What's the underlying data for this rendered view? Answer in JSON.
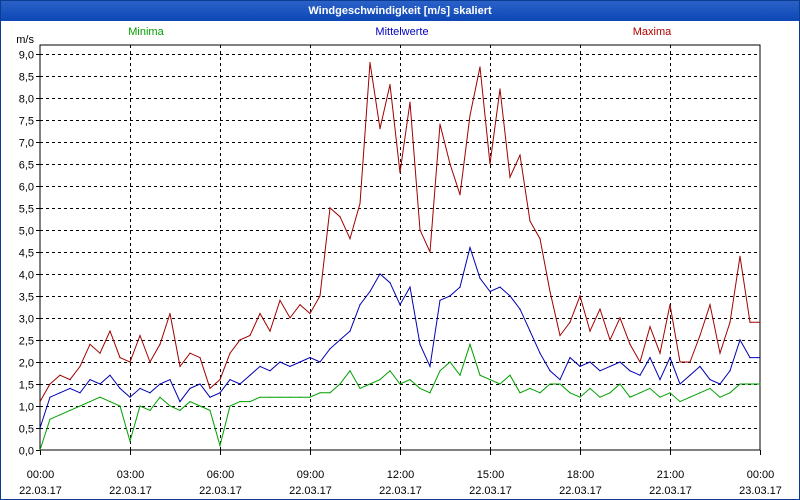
{
  "window": {
    "title": "Windgeschwindigkeit [m/s] skaliert"
  },
  "chart_data": {
    "type": "line",
    "title": "Windgeschwindigkeit [m/s] skaliert",
    "ylabel": "m/s",
    "xlabel": "",
    "ylim": [
      0,
      9.2
    ],
    "xlim": [
      0,
      24
    ],
    "grid": true,
    "y_ticks": [
      {
        "value": 0,
        "label": "0,0"
      },
      {
        "value": 0.5,
        "label": "0,5"
      },
      {
        "value": 1,
        "label": "1,0"
      },
      {
        "value": 1.5,
        "label": "1,5"
      },
      {
        "value": 2,
        "label": "2,0"
      },
      {
        "value": 2.5,
        "label": "2,5"
      },
      {
        "value": 3,
        "label": "3,0"
      },
      {
        "value": 3.5,
        "label": "3,5"
      },
      {
        "value": 4,
        "label": "4,0"
      },
      {
        "value": 4.5,
        "label": "4,5"
      },
      {
        "value": 5,
        "label": "5,0"
      },
      {
        "value": 5.5,
        "label": "5,5"
      },
      {
        "value": 6,
        "label": "6,0"
      },
      {
        "value": 6.5,
        "label": "6,5"
      },
      {
        "value": 7,
        "label": "7,0"
      },
      {
        "value": 7.5,
        "label": "7,5"
      },
      {
        "value": 8,
        "label": "8,0"
      },
      {
        "value": 8.5,
        "label": "8,5"
      },
      {
        "value": 9,
        "label": "9,0"
      }
    ],
    "x_ticks": [
      {
        "value": 0,
        "time": "00:00",
        "date": "22.03.17"
      },
      {
        "value": 3,
        "time": "03:00",
        "date": "22.03.17"
      },
      {
        "value": 6,
        "time": "06:00",
        "date": "22.03.17"
      },
      {
        "value": 9,
        "time": "09:00",
        "date": "22.03.17"
      },
      {
        "value": 12,
        "time": "12:00",
        "date": "22.03.17"
      },
      {
        "value": 15,
        "time": "15:00",
        "date": "22.03.17"
      },
      {
        "value": 18,
        "time": "18:00",
        "date": "22.03.17"
      },
      {
        "value": 21,
        "time": "21:00",
        "date": "22.03.17"
      },
      {
        "value": 24,
        "time": "00:00",
        "date": "23.03.17"
      }
    ],
    "legend": [
      {
        "name": "Minima",
        "color": "#00a000",
        "position": "left"
      },
      {
        "name": "Mittelwerte",
        "color": "#0000c0",
        "position": "center"
      },
      {
        "name": "Maxima",
        "color": "#b00000",
        "position": "right"
      }
    ],
    "x": [
      0,
      0.333,
      0.667,
      1,
      1.333,
      1.667,
      2,
      2.333,
      2.667,
      3,
      3.333,
      3.667,
      4,
      4.333,
      4.667,
      5,
      5.333,
      5.667,
      6,
      6.333,
      6.667,
      7,
      7.333,
      7.667,
      8,
      8.333,
      8.667,
      9,
      9.333,
      9.667,
      10,
      10.333,
      10.667,
      11,
      11.333,
      11.667,
      12,
      12.333,
      12.667,
      13,
      13.333,
      13.667,
      14,
      14.333,
      14.667,
      15,
      15.333,
      15.667,
      16,
      16.333,
      16.667,
      17,
      17.333,
      17.667,
      18,
      18.333,
      18.667,
      19,
      19.333,
      19.667,
      20,
      20.333,
      20.667,
      21,
      21.333,
      21.667,
      22,
      22.333,
      22.667,
      23,
      23.333,
      23.667,
      24
    ],
    "series": [
      {
        "name": "Maxima",
        "color": "#a00000",
        "values": [
          1.1,
          1.5,
          1.7,
          1.6,
          1.9,
          2.4,
          2.2,
          2.7,
          2.1,
          2.0,
          2.6,
          2.0,
          2.4,
          3.1,
          1.9,
          2.2,
          2.1,
          1.4,
          1.6,
          2.2,
          2.5,
          2.6,
          3.1,
          2.7,
          3.4,
          3.0,
          3.3,
          3.1,
          3.5,
          5.5,
          5.3,
          4.8,
          5.6,
          8.8,
          7.3,
          8.3,
          6.3,
          7.9,
          5.0,
          4.5,
          7.4,
          6.5,
          5.8,
          7.6,
          8.7,
          6.5,
          8.2,
          6.2,
          6.7,
          5.2,
          4.8,
          3.6,
          2.6,
          2.9,
          3.5,
          2.7,
          3.2,
          2.5,
          3.0,
          2.4,
          2.0,
          2.8,
          2.2,
          3.3,
          2.0,
          2.0,
          2.6,
          3.3,
          2.2,
          2.9,
          4.4,
          2.9,
          2.9
        ]
      },
      {
        "name": "Mittelwerte",
        "color": "#0000b4",
        "values": [
          0.5,
          1.2,
          1.3,
          1.4,
          1.3,
          1.6,
          1.5,
          1.7,
          1.4,
          1.2,
          1.4,
          1.3,
          1.5,
          1.6,
          1.1,
          1.4,
          1.5,
          1.2,
          1.3,
          1.6,
          1.5,
          1.7,
          1.9,
          1.8,
          2.0,
          1.9,
          2.0,
          2.1,
          2.0,
          2.3,
          2.5,
          2.7,
          3.3,
          3.6,
          4.0,
          3.8,
          3.3,
          3.7,
          2.4,
          1.9,
          3.4,
          3.5,
          3.7,
          4.6,
          3.9,
          3.6,
          3.7,
          3.5,
          3.2,
          2.7,
          2.2,
          1.8,
          1.6,
          2.1,
          1.9,
          2.0,
          1.8,
          1.9,
          2.0,
          1.8,
          1.7,
          2.1,
          1.6,
          2.1,
          1.5,
          1.7,
          1.9,
          1.6,
          1.5,
          1.8,
          2.5,
          2.1,
          2.1
        ]
      },
      {
        "name": "Minima",
        "color": "#00a000",
        "values": [
          0.0,
          0.7,
          0.8,
          0.9,
          1.0,
          1.1,
          1.2,
          1.1,
          1.0,
          0.2,
          1.0,
          0.9,
          1.2,
          1.0,
          0.9,
          1.1,
          1.0,
          0.9,
          0.1,
          1.0,
          1.1,
          1.1,
          1.2,
          1.2,
          1.2,
          1.2,
          1.2,
          1.2,
          1.3,
          1.3,
          1.5,
          1.8,
          1.4,
          1.5,
          1.6,
          1.8,
          1.5,
          1.6,
          1.4,
          1.3,
          1.8,
          2.0,
          1.7,
          2.4,
          1.7,
          1.6,
          1.5,
          1.7,
          1.3,
          1.4,
          1.3,
          1.5,
          1.5,
          1.3,
          1.2,
          1.4,
          1.2,
          1.3,
          1.5,
          1.2,
          1.3,
          1.4,
          1.2,
          1.3,
          1.1,
          1.2,
          1.3,
          1.4,
          1.2,
          1.3,
          1.5,
          1.5,
          1.5
        ]
      }
    ]
  }
}
